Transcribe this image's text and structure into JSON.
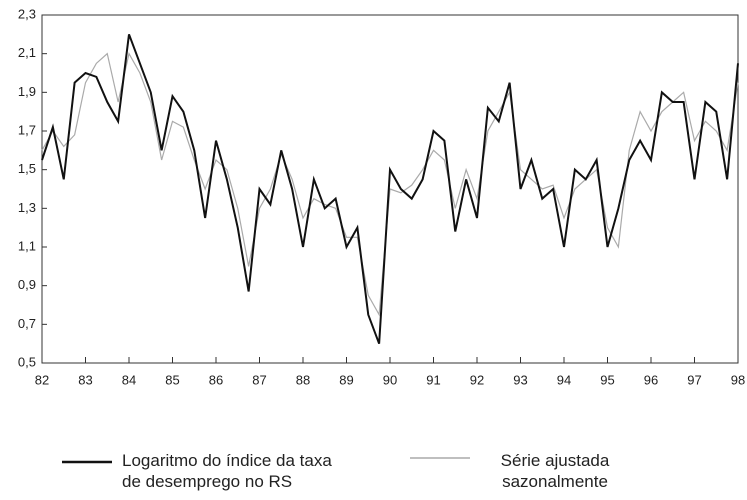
{
  "chart_data": {
    "type": "line",
    "x": [
      82,
      82.25,
      82.5,
      82.75,
      83,
      83.25,
      83.5,
      83.75,
      84,
      84.25,
      84.5,
      84.75,
      85,
      85.25,
      85.5,
      85.75,
      86,
      86.25,
      86.5,
      86.75,
      87,
      87.25,
      87.5,
      87.75,
      88,
      88.25,
      88.5,
      88.75,
      89,
      89.25,
      89.5,
      89.75,
      90,
      90.25,
      90.5,
      90.75,
      91,
      91.25,
      91.5,
      91.75,
      92,
      92.25,
      92.5,
      92.75,
      93,
      93.25,
      93.5,
      93.75,
      94,
      94.25,
      94.5,
      94.75,
      95,
      95.25,
      95.5,
      95.75,
      96,
      96.25,
      96.5,
      96.75,
      97,
      97.25,
      97.5,
      97.75,
      98
    ],
    "series": [
      {
        "name": "Logaritmo do índice da taxa de desemprego no RS",
        "color": "#111111",
        "values": [
          1.55,
          1.72,
          1.45,
          1.95,
          2.0,
          1.98,
          1.85,
          1.75,
          2.2,
          2.05,
          1.9,
          1.6,
          1.88,
          1.8,
          1.6,
          1.25,
          1.65,
          1.45,
          1.2,
          0.87,
          1.4,
          1.32,
          1.6,
          1.4,
          1.1,
          1.45,
          1.3,
          1.35,
          1.1,
          1.2,
          0.75,
          0.6,
          1.5,
          1.4,
          1.35,
          1.45,
          1.7,
          1.65,
          1.18,
          1.45,
          1.25,
          1.82,
          1.75,
          1.95,
          1.4,
          1.55,
          1.35,
          1.4,
          1.1,
          1.5,
          1.45,
          1.55,
          1.1,
          1.3,
          1.55,
          1.65,
          1.55,
          1.9,
          1.85,
          1.85,
          1.45,
          1.85,
          1.8,
          1.45,
          2.05
        ]
      },
      {
        "name": "Série ajustada sazonalmente",
        "color": "#aaaaaa",
        "values": [
          1.6,
          1.7,
          1.62,
          1.68,
          1.95,
          2.05,
          2.1,
          1.85,
          2.1,
          2.0,
          1.85,
          1.55,
          1.75,
          1.72,
          1.55,
          1.4,
          1.55,
          1.5,
          1.3,
          1.0,
          1.3,
          1.4,
          1.58,
          1.45,
          1.25,
          1.35,
          1.32,
          1.3,
          1.15,
          1.15,
          0.85,
          0.75,
          1.4,
          1.38,
          1.42,
          1.5,
          1.6,
          1.55,
          1.3,
          1.5,
          1.35,
          1.7,
          1.8,
          1.9,
          1.5,
          1.45,
          1.4,
          1.42,
          1.25,
          1.4,
          1.45,
          1.5,
          1.2,
          1.1,
          1.6,
          1.8,
          1.7,
          1.8,
          1.85,
          1.9,
          1.65,
          1.75,
          1.7,
          1.6,
          1.95
        ]
      }
    ],
    "xlim": [
      82,
      98
    ],
    "xticks": [
      82,
      83,
      84,
      85,
      86,
      87,
      88,
      89,
      90,
      91,
      92,
      93,
      94,
      95,
      96,
      97,
      98
    ],
    "ylim": [
      0.5,
      2.3
    ],
    "yticks": [
      {
        "value": 0.5,
        "label": "0,5"
      },
      {
        "value": 0.7,
        "label": "0,7"
      },
      {
        "value": 0.9,
        "label": "0,9"
      },
      {
        "value": 1.1,
        "label": "1,1"
      },
      {
        "value": 1.3,
        "label": "1,3"
      },
      {
        "value": 1.5,
        "label": "1,5"
      },
      {
        "value": 1.7,
        "label": "1,7"
      },
      {
        "value": 1.9,
        "label": "1,9"
      },
      {
        "value": 2.1,
        "label": "2,1"
      },
      {
        "value": 2.3,
        "label": "2,3"
      }
    ]
  }
}
